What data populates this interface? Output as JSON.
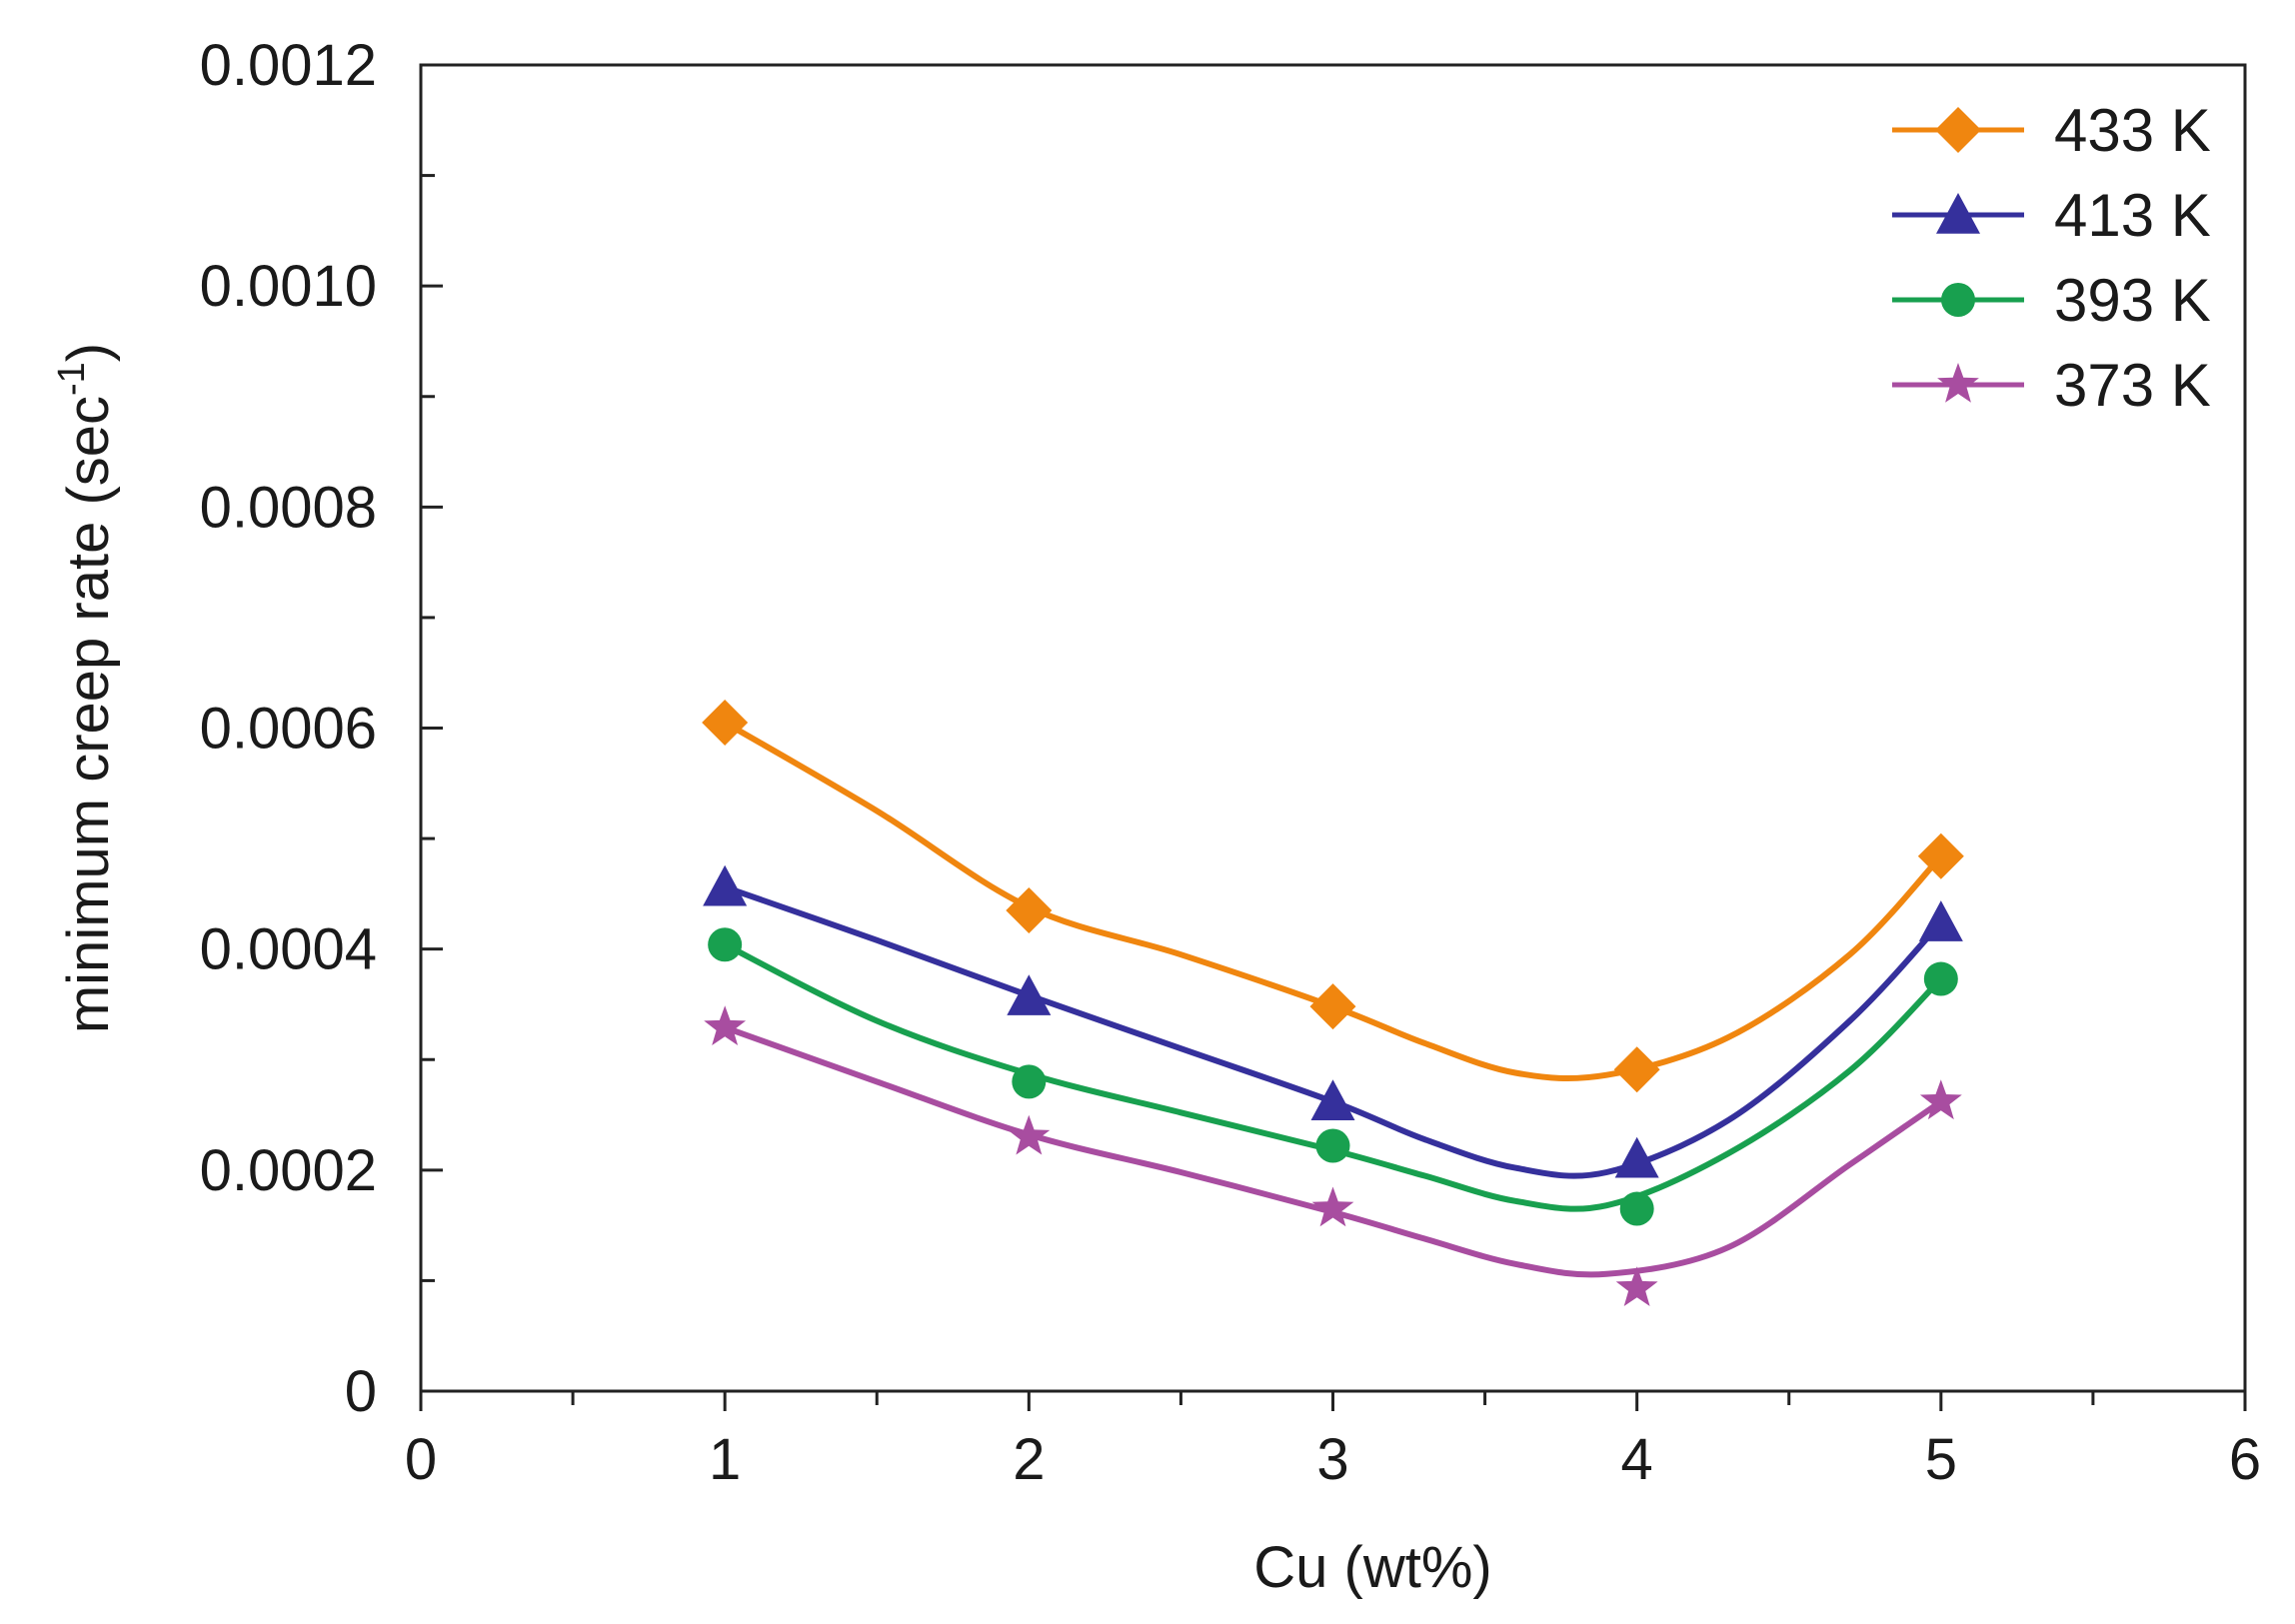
{
  "chart_data": {
    "type": "line",
    "title": "",
    "xlabel": "Cu (wt%)",
    "ylabel_main": "minimum creep rate (sec",
    "ylabel_sup": "-1",
    "ylabel_close": ")",
    "xlim": [
      0,
      6
    ],
    "ylim": [
      0,
      0.0012
    ],
    "x_major_ticks": [
      0,
      1,
      2,
      3,
      4,
      5,
      6
    ],
    "x_tick_labels": [
      "0",
      "1",
      "2",
      "3",
      "4",
      "5",
      "6"
    ],
    "x_minor_ticks": [
      0.5,
      1.5,
      2.5,
      3.5,
      4.5,
      5.5
    ],
    "y_major_ticks": [
      0,
      0.0002,
      0.0004,
      0.0006,
      0.0008,
      0.001,
      0.0012
    ],
    "y_tick_labels": [
      "0",
      "0.0002",
      "0.0004",
      "0.0006",
      "0.0008",
      "0.0010",
      "0.0012"
    ],
    "y_minor_ticks": [
      0.0001,
      0.0003,
      0.0005,
      0.0007,
      0.0009,
      0.0011
    ],
    "grid": false,
    "legend_position": "top-right",
    "x": [
      1,
      2,
      3,
      4,
      5
    ],
    "series": [
      {
        "name": "433 K",
        "color": "#f0860f",
        "marker": "diamond",
        "values": [
          0.000605,
          0.000435,
          0.000348,
          0.000291,
          0.000484
        ],
        "fit": [
          [
            1,
            0.000605
          ],
          [
            1.5,
            0.000525
          ],
          [
            2,
            0.000438
          ],
          [
            2.5,
            0.000395
          ],
          [
            3,
            0.000348
          ],
          [
            3.3,
            0.000315
          ],
          [
            3.6,
            0.000288
          ],
          [
            3.9,
            0.000286
          ],
          [
            4.3,
            0.00032
          ],
          [
            4.7,
            0.000395
          ],
          [
            5,
            0.000484
          ]
        ]
      },
      {
        "name": "413 K",
        "color": "#35309c",
        "marker": "triangle",
        "values": [
          0.000456,
          0.000357,
          0.000262,
          0.00021,
          0.000424
        ],
        "fit": [
          [
            1,
            0.000456
          ],
          [
            1.5,
            0.000408
          ],
          [
            2,
            0.000358
          ],
          [
            2.5,
            0.00031
          ],
          [
            3,
            0.000262
          ],
          [
            3.3,
            0.000228
          ],
          [
            3.6,
            0.000202
          ],
          [
            3.9,
            0.000198
          ],
          [
            4.3,
            0.000245
          ],
          [
            4.7,
            0.000335
          ],
          [
            5,
            0.000424
          ]
        ]
      },
      {
        "name": "393 K",
        "color": "#18a04f",
        "marker": "circle",
        "values": [
          0.000404,
          0.00028,
          0.000222,
          0.000165,
          0.000373
        ],
        "fit": [
          [
            1,
            0.000404
          ],
          [
            1.5,
            0.000335
          ],
          [
            2,
            0.000287
          ],
          [
            2.5,
            0.000252
          ],
          [
            3,
            0.000218
          ],
          [
            3.3,
            0.000195
          ],
          [
            3.6,
            0.000172
          ],
          [
            3.9,
            0.000168
          ],
          [
            4.3,
            0.000215
          ],
          [
            4.7,
            0.00029
          ],
          [
            5,
            0.000373
          ]
        ]
      },
      {
        "name": "373 K",
        "color": "#a84da0",
        "marker": "star",
        "values": [
          0.000329,
          0.00023,
          0.000165,
          9.3e-05,
          0.000262
        ],
        "fit": [
          [
            1,
            0.000329
          ],
          [
            1.5,
            0.00028
          ],
          [
            2,
            0.000232
          ],
          [
            2.5,
            0.000198
          ],
          [
            3,
            0.000162
          ],
          [
            3.3,
            0.000138
          ],
          [
            3.6,
            0.000115
          ],
          [
            3.9,
            0.000106
          ],
          [
            4.3,
            0.00013
          ],
          [
            4.7,
            0.000205
          ],
          [
            5,
            0.000262
          ]
        ]
      }
    ]
  }
}
